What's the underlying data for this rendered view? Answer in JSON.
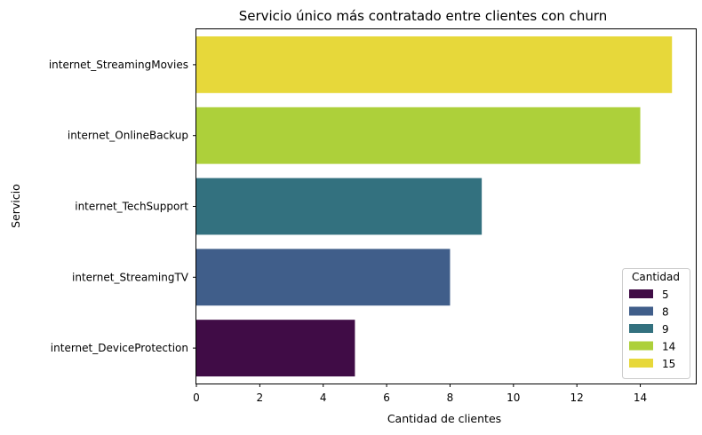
{
  "chart_data": {
    "type": "bar",
    "orientation": "horizontal",
    "title": "Servicio único más contratado entre clientes con churn",
    "xlabel": "Cantidad de clientes",
    "ylabel": "Servicio",
    "categories": [
      "internet_StreamingMovies",
      "internet_OnlineBackup",
      "internet_TechSupport",
      "internet_StreamingTV",
      "internet_DeviceProtection"
    ],
    "values": [
      15,
      14,
      9,
      8,
      5
    ],
    "colors": [
      "#e7d83a",
      "#add03a",
      "#33717f",
      "#405e8a",
      "#400c46"
    ],
    "xlim": [
      0,
      15.75
    ],
    "xticks": [
      0,
      2,
      4,
      6,
      8,
      10,
      12,
      14
    ],
    "grid": false,
    "legend": {
      "title": "Cantidad",
      "placement": "lower-right",
      "entries": [
        {
          "label": "5",
          "color": "#400c46"
        },
        {
          "label": "8",
          "color": "#405e8a"
        },
        {
          "label": "9",
          "color": "#33717f"
        },
        {
          "label": "14",
          "color": "#add03a"
        },
        {
          "label": "15",
          "color": "#e7d83a"
        }
      ]
    }
  }
}
